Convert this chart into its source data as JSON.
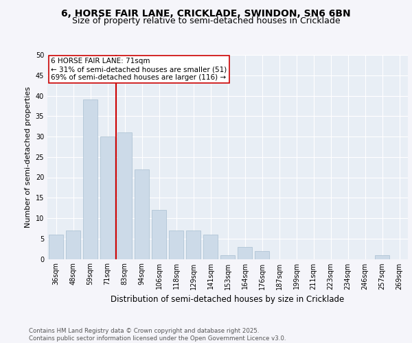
{
  "title1": "6, HORSE FAIR LANE, CRICKLADE, SWINDON, SN6 6BN",
  "title2": "Size of property relative to semi-detached houses in Cricklade",
  "xlabel": "Distribution of semi-detached houses by size in Cricklade",
  "ylabel": "Number of semi-detached properties",
  "categories": [
    "36sqm",
    "48sqm",
    "59sqm",
    "71sqm",
    "83sqm",
    "94sqm",
    "106sqm",
    "118sqm",
    "129sqm",
    "141sqm",
    "153sqm",
    "164sqm",
    "176sqm",
    "187sqm",
    "199sqm",
    "211sqm",
    "223sqm",
    "234sqm",
    "246sqm",
    "257sqm",
    "269sqm"
  ],
  "values": [
    6,
    7,
    39,
    30,
    31,
    22,
    12,
    7,
    7,
    6,
    1,
    3,
    2,
    0,
    0,
    0,
    0,
    0,
    0,
    1,
    0
  ],
  "bar_color": "#ccdae8",
  "bar_edge_color": "#a8bfd0",
  "vline_index": 3,
  "vline_color": "#cc0000",
  "annotation_text": "6 HORSE FAIR LANE: 71sqm\n← 31% of semi-detached houses are smaller (51)\n69% of semi-detached houses are larger (116) →",
  "annotation_box_color": "#ffffff",
  "annotation_box_edge": "#cc0000",
  "ylim": [
    0,
    50
  ],
  "yticks": [
    0,
    5,
    10,
    15,
    20,
    25,
    30,
    35,
    40,
    45,
    50
  ],
  "background_color": "#e8eef5",
  "plot_bg_color": "#e8eef5",
  "fig_bg_color": "#f5f5fa",
  "footer": "Contains HM Land Registry data © Crown copyright and database right 2025.\nContains public sector information licensed under the Open Government Licence v3.0.",
  "title_fontsize": 10,
  "subtitle_fontsize": 9,
  "ylabel_fontsize": 8,
  "xlabel_fontsize": 8.5,
  "tick_fontsize": 7,
  "annotation_fontsize": 7.5
}
